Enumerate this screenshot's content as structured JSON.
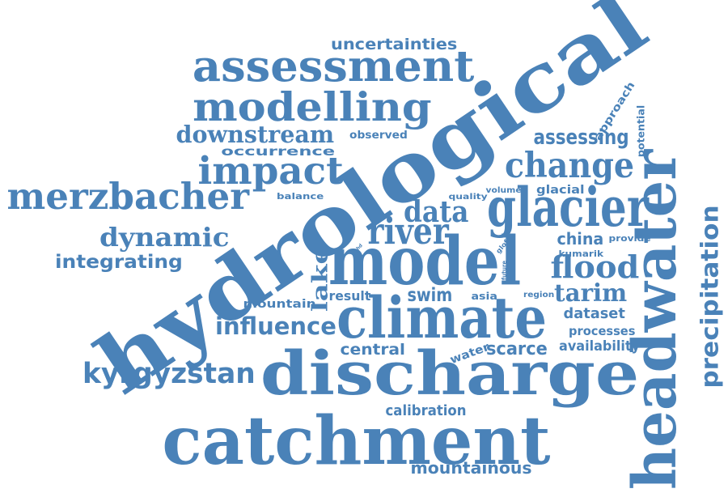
{
  "word_color": "#4a82b8",
  "background": "#ffffff",
  "words": [
    {
      "id": "uncertainties",
      "text": "uncertainties"
    },
    {
      "id": "assessment",
      "text": "assessment"
    },
    {
      "id": "modelling",
      "text": "modelling"
    },
    {
      "id": "downstream",
      "text": "downstream"
    },
    {
      "id": "observed",
      "text": "observed"
    },
    {
      "id": "occurrence",
      "text": "occurrence"
    },
    {
      "id": "impact",
      "text": "impact"
    },
    {
      "id": "merzbacher",
      "text": "merzbacher"
    },
    {
      "id": "balance",
      "text": "balance"
    },
    {
      "id": "quality",
      "text": "quality"
    },
    {
      "id": "volume",
      "text": "volume"
    },
    {
      "id": "glacial",
      "text": "glacial"
    },
    {
      "id": "dynamic",
      "text": "dynamic"
    },
    {
      "id": "integrating",
      "text": "integrating"
    },
    {
      "id": "data",
      "text": "data"
    },
    {
      "id": "river",
      "text": "river"
    },
    {
      "id": "hydrological",
      "text": "hydrological"
    },
    {
      "id": "model",
      "text": "model"
    },
    {
      "id": "glacier",
      "text": "glacier"
    },
    {
      "id": "change",
      "text": "change"
    },
    {
      "id": "assessing",
      "text": "assessing"
    },
    {
      "id": "approach",
      "text": "approach"
    },
    {
      "id": "potential",
      "text": "potential"
    },
    {
      "id": "headwater",
      "text": "headwater"
    },
    {
      "id": "precipitation",
      "text": "precipitation"
    },
    {
      "id": "china",
      "text": "china"
    },
    {
      "id": "provide",
      "text": "provide"
    },
    {
      "id": "kumarik",
      "text": "kumarik"
    },
    {
      "id": "flood",
      "text": "flood"
    },
    {
      "id": "glofs",
      "text": "glofs"
    },
    {
      "id": "future",
      "text": "future"
    },
    {
      "id": "ghd",
      "text": "ghd"
    },
    {
      "id": "tarim",
      "text": "tarim"
    },
    {
      "id": "region",
      "text": "region"
    },
    {
      "id": "dataset",
      "text": "dataset"
    },
    {
      "id": "processes",
      "text": "processes"
    },
    {
      "id": "availability",
      "text": "availability"
    },
    {
      "id": "lake",
      "text": "lake"
    },
    {
      "id": "mountain",
      "text": "mountain"
    },
    {
      "id": "result",
      "text": "result"
    },
    {
      "id": "swim",
      "text": "swim"
    },
    {
      "id": "asia",
      "text": "asia"
    },
    {
      "id": "climate",
      "text": "climate"
    },
    {
      "id": "influence",
      "text": "influence"
    },
    {
      "id": "central",
      "text": "central"
    },
    {
      "id": "water",
      "text": "water"
    },
    {
      "id": "scarce",
      "text": "scarce"
    },
    {
      "id": "kyrgyzstan",
      "text": "kyrgyzstan"
    },
    {
      "id": "discharge",
      "text": "discharge"
    },
    {
      "id": "calibration",
      "text": "calibration"
    },
    {
      "id": "catchment",
      "text": "catchment"
    },
    {
      "id": "mountainous",
      "text": "mountainous"
    }
  ]
}
